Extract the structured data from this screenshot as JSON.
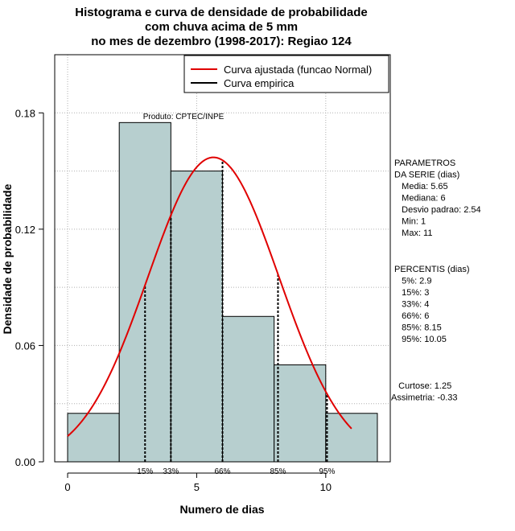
{
  "chart_data": {
    "type": "bar",
    "title_lines": [
      "Histograma e curva de densidade de probabilidade",
      "com chuva acima de 5 mm",
      "no mes de dezembro (1998-2017): Regiao 124"
    ],
    "xlabel": "Numero de dias",
    "ylabel": "Densidade de probabilidade",
    "xlim": [
      -0.5,
      12.5
    ],
    "ylim": [
      0,
      0.21
    ],
    "x_ticks": [
      0,
      5,
      10
    ],
    "x_tick_labels": [
      "0",
      "5",
      "10"
    ],
    "y_ticks": [
      0.0,
      0.06,
      0.12,
      0.18
    ],
    "y_tick_labels": [
      "0.00",
      "0.06",
      "0.12",
      "0.18"
    ],
    "grid": true,
    "bins": [
      {
        "start": 0,
        "end": 2,
        "density": 0.025
      },
      {
        "start": 2,
        "end": 4,
        "density": 0.175
      },
      {
        "start": 4,
        "end": 6,
        "density": 0.15
      },
      {
        "start": 6,
        "end": 8,
        "density": 0.075
      },
      {
        "start": 8,
        "end": 10,
        "density": 0.05
      },
      {
        "start": 10,
        "end": 12,
        "density": 0.025
      }
    ],
    "bar_color": "#b7cfcf",
    "normal_curve": {
      "mean": 5.65,
      "sd": 2.54,
      "x_from": 0,
      "x_to": 11,
      "color": "#e00000"
    },
    "percentile_lines": [
      {
        "label": "15%",
        "x": 3
      },
      {
        "label": "33%",
        "x": 4
      },
      {
        "label": "66%",
        "x": 6
      },
      {
        "label": "85%",
        "x": 8.15
      },
      {
        "label": "95%",
        "x": 10.05
      }
    ],
    "legend": {
      "position": "top-right",
      "entries": [
        {
          "label": "Curva ajustada (funcao Normal)",
          "color": "#e00000"
        },
        {
          "label": "Curva empirica",
          "color": "#000000"
        }
      ]
    },
    "annotation": "Produto: CPTEC/INPE",
    "side_text": {
      "param_lines": [
        "PARAMETROS",
        "DA SERIE (dias)",
        "   Media: 5.65",
        "   Mediana: 6",
        "   Desvio padrao: 2.54",
        "   Min: 1",
        "   Max: 11"
      ],
      "perc_lines": [
        "PERCENTIS (dias)",
        "   5%: 2.9",
        "   15%: 3",
        "   33%: 4",
        "   66%: 6",
        "   85%: 8.15",
        "   95%: 10.05"
      ],
      "shape_lines": [
        "   Curtose: 1.25",
        "Assimetria: -0.33"
      ]
    }
  }
}
